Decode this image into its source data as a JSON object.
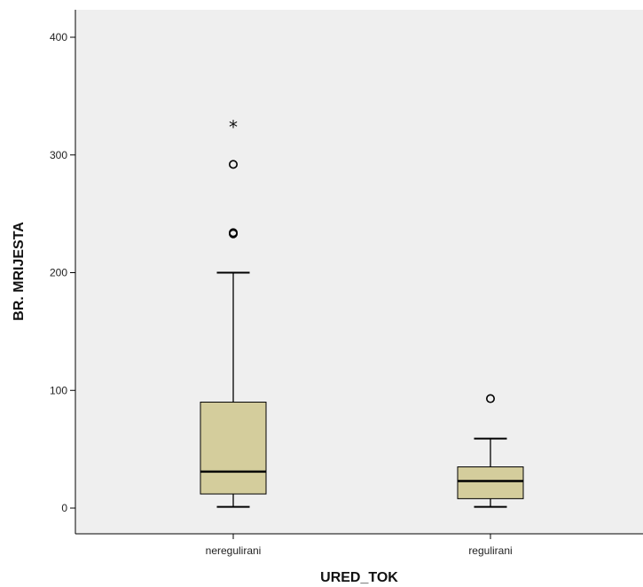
{
  "chart_data": {
    "type": "boxplot",
    "xlabel": "URED_TOK",
    "ylabel": "BR. MRIJESTA",
    "ylim": [
      -22,
      423
    ],
    "yticks": [
      0,
      100,
      200,
      300,
      400
    ],
    "categories": [
      "neregulirani",
      "regulirani"
    ],
    "boxes": [
      {
        "category": "neregulirani",
        "whisker_low": 1,
        "q1": 12,
        "median": 31,
        "q3": 90,
        "whisker_high": 200,
        "outliers": [
          234,
          233,
          292
        ],
        "extremes": [
          325
        ]
      },
      {
        "category": "regulirani",
        "whisker_low": 1,
        "q1": 8,
        "median": 23,
        "q3": 35,
        "whisker_high": 59,
        "outliers": [
          93
        ],
        "extremes": []
      }
    ],
    "colors": {
      "plot_background": "#efefef",
      "box_fill": "#d4cd9c",
      "stroke": "#000000"
    },
    "grid": false
  }
}
